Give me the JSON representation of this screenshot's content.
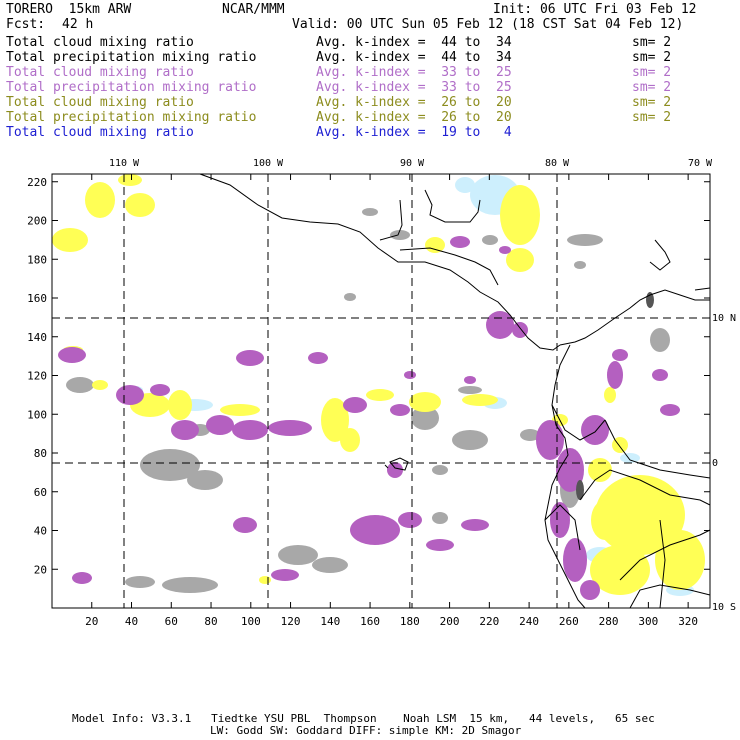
{
  "header": {
    "model": "TORERO  15km ARW",
    "org": "NCAR/MMM",
    "init": "Init: 06 UTC Fri 03 Feb 12",
    "fcst_label": "Fcst:",
    "fcst_value": "42 h",
    "valid": "Valid: 00 UTC Sun 05 Feb 12 (18 CST Sat 04 Feb 12)"
  },
  "legend": [
    {
      "field": "Total cloud mixing ratio",
      "range": "Avg. k-index =  44 to  34",
      "sm": "sm= 2",
      "color": "#000000"
    },
    {
      "field": "Total precipitation mixing ratio",
      "range": "Avg. k-index =  44 to  34",
      "sm": "sm= 2",
      "color": "#000000"
    },
    {
      "field": "Total cloud mixing ratio",
      "range": "Avg. k-index =  33 to  25",
      "sm": "sm= 2",
      "color": "#b06ec8"
    },
    {
      "field": "Total precipitation mixing ratio",
      "range": "Avg. k-index =  33 to  25",
      "sm": "sm= 2",
      "color": "#b06ec8"
    },
    {
      "field": "Total cloud mixing ratio",
      "range": "Avg. k-index =  26 to  20",
      "sm": "sm= 2",
      "color": "#8c8c1e"
    },
    {
      "field": "Total precipitation mixing ratio",
      "range": "Avg. k-index =  26 to  20",
      "sm": "sm= 2",
      "color": "#8c8c1e"
    },
    {
      "field": "Total cloud mixing ratio",
      "range": "Avg. k-index =  19 to   4",
      "sm": "",
      "color": "#1e1ed2"
    }
  ],
  "axes": {
    "lon_labels": [
      "110 W",
      "100 W",
      "90 W",
      "80 W",
      "70 W"
    ],
    "lat_labels": [
      "10 N",
      "0",
      "10 S"
    ],
    "x_ticks": [
      "20",
      "40",
      "60",
      "80",
      "100",
      "120",
      "140",
      "160",
      "180",
      "200",
      "220",
      "240",
      "260",
      "280",
      "300",
      "320"
    ],
    "y_ticks": [
      "20",
      "40",
      "60",
      "80",
      "100",
      "120",
      "140",
      "160",
      "180",
      "200",
      "220"
    ]
  },
  "footer": {
    "line1": "Model Info: V3.3.1   Tiedtke YSU PBL  Thompson    Noah LSM  15 km,   44 levels,   65 sec",
    "line2": "LW: Godd SW: Goddard DIFF: simple KM: 2D Smagor"
  },
  "colors": {
    "purple": "#b460c0",
    "yellow": "#ffff50",
    "gray": "#a0a0a0",
    "cyan": "#c8f0ff",
    "darkgray": "#606060"
  }
}
